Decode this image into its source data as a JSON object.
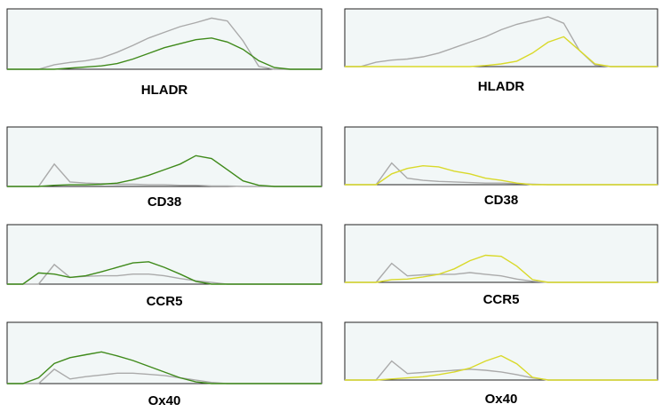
{
  "chart_data": [
    {
      "type": "line",
      "title": "HLADR",
      "x": [
        0,
        5,
        10,
        15,
        20,
        25,
        30,
        35,
        40,
        45,
        50,
        55,
        60,
        65,
        70,
        75,
        80,
        85,
        90,
        95,
        100
      ],
      "xlim": [
        0,
        100
      ],
      "ylim": [
        0,
        100
      ],
      "series": [
        {
          "color": "#aaaaaa",
          "values": [
            0,
            0,
            0,
            8,
            12,
            15,
            20,
            30,
            42,
            55,
            65,
            75,
            82,
            90,
            85,
            50,
            5,
            0,
            0,
            0,
            0
          ]
        },
        {
          "color": "#3f8a1a",
          "values": [
            0,
            0,
            0,
            0,
            2,
            4,
            6,
            10,
            18,
            28,
            38,
            45,
            52,
            55,
            48,
            35,
            15,
            3,
            0,
            0,
            0
          ]
        }
      ]
    },
    {
      "type": "line",
      "title": "HLADR",
      "x": [
        0,
        5,
        10,
        15,
        20,
        25,
        30,
        35,
        40,
        45,
        50,
        55,
        60,
        65,
        70,
        75,
        80,
        85,
        90,
        95,
        100
      ],
      "xlim": [
        0,
        100
      ],
      "ylim": [
        0,
        100
      ],
      "series": [
        {
          "color": "#aaaaaa",
          "values": [
            0,
            0,
            8,
            12,
            14,
            18,
            25,
            35,
            45,
            55,
            68,
            78,
            85,
            92,
            80,
            30,
            3,
            0,
            0,
            0,
            0
          ]
        },
        {
          "color": "#d9d92a",
          "values": [
            0,
            0,
            0,
            0,
            0,
            0,
            0,
            0,
            0,
            2,
            5,
            10,
            25,
            45,
            55,
            30,
            5,
            0,
            0,
            0,
            0
          ]
        }
      ]
    },
    {
      "type": "line",
      "title": "CD38",
      "x": [
        0,
        5,
        10,
        15,
        20,
        25,
        30,
        35,
        40,
        45,
        50,
        55,
        60,
        65,
        70,
        75,
        80,
        85,
        90,
        95,
        100
      ],
      "xlim": [
        0,
        100
      ],
      "ylim": [
        0,
        100
      ],
      "series": [
        {
          "color": "#aaaaaa",
          "values": [
            0,
            0,
            0,
            40,
            8,
            6,
            5,
            4,
            4,
            3,
            3,
            2,
            2,
            1,
            1,
            0,
            0,
            0,
            0,
            0,
            0
          ]
        },
        {
          "color": "#3f8a1a",
          "values": [
            0,
            0,
            0,
            2,
            3,
            3,
            4,
            6,
            12,
            20,
            30,
            40,
            55,
            50,
            30,
            10,
            2,
            0,
            0,
            0,
            0
          ]
        }
      ]
    },
    {
      "type": "line",
      "title": "CD38",
      "x": [
        0,
        5,
        10,
        15,
        20,
        25,
        30,
        35,
        40,
        45,
        50,
        55,
        60,
        65,
        70,
        75,
        80,
        85,
        90,
        95,
        100
      ],
      "xlim": [
        0,
        100
      ],
      "ylim": [
        0,
        100
      ],
      "series": [
        {
          "color": "#aaaaaa",
          "values": [
            0,
            0,
            0,
            40,
            12,
            8,
            6,
            5,
            4,
            3,
            3,
            2,
            1,
            0,
            0,
            0,
            0,
            0,
            0,
            0,
            0
          ]
        },
        {
          "color": "#d9d92a",
          "values": [
            0,
            0,
            0,
            20,
            30,
            35,
            33,
            25,
            20,
            12,
            8,
            3,
            0,
            0,
            0,
            0,
            0,
            0,
            0,
            0,
            0
          ]
        }
      ]
    },
    {
      "type": "line",
      "title": "CCR5",
      "x": [
        0,
        5,
        10,
        15,
        20,
        25,
        30,
        35,
        40,
        45,
        50,
        55,
        60,
        65,
        70,
        75,
        80,
        85,
        90,
        95,
        100
      ],
      "xlim": [
        0,
        100
      ],
      "ylim": [
        0,
        100
      ],
      "series": [
        {
          "color": "#aaaaaa",
          "values": [
            0,
            0,
            0,
            35,
            12,
            14,
            15,
            15,
            18,
            18,
            15,
            10,
            6,
            3,
            0,
            0,
            0,
            0,
            0,
            0,
            0
          ]
        },
        {
          "color": "#3f8a1a",
          "values": [
            0,
            0,
            20,
            18,
            12,
            15,
            22,
            30,
            38,
            40,
            30,
            18,
            5,
            0,
            0,
            0,
            0,
            0,
            0,
            0,
            0
          ]
        }
      ]
    },
    {
      "type": "line",
      "title": "CCR5",
      "x": [
        0,
        5,
        10,
        15,
        20,
        25,
        30,
        35,
        40,
        45,
        50,
        55,
        60,
        65,
        70,
        75,
        80,
        85,
        90,
        95,
        100
      ],
      "xlim": [
        0,
        100
      ],
      "ylim": [
        0,
        100
      ],
      "series": [
        {
          "color": "#aaaaaa",
          "values": [
            0,
            0,
            0,
            35,
            12,
            14,
            15,
            15,
            18,
            15,
            12,
            6,
            2,
            0,
            0,
            0,
            0,
            0,
            0,
            0,
            0
          ]
        },
        {
          "color": "#d9d92a",
          "values": [
            0,
            0,
            0,
            5,
            6,
            10,
            15,
            25,
            40,
            50,
            48,
            30,
            5,
            0,
            0,
            0,
            0,
            0,
            0,
            0,
            0
          ]
        }
      ]
    },
    {
      "type": "line",
      "title": "Ox40",
      "x": [
        0,
        5,
        10,
        15,
        20,
        25,
        30,
        35,
        40,
        45,
        50,
        55,
        60,
        65,
        70,
        75,
        80,
        85,
        90,
        95,
        100
      ],
      "xlim": [
        0,
        100
      ],
      "ylim": [
        0,
        100
      ],
      "series": [
        {
          "color": "#aaaaaa",
          "values": [
            0,
            0,
            0,
            25,
            8,
            12,
            15,
            18,
            18,
            16,
            14,
            10,
            6,
            2,
            0,
            0,
            0,
            0,
            0,
            0,
            0
          ]
        },
        {
          "color": "#3f8a1a",
          "values": [
            0,
            0,
            10,
            35,
            45,
            50,
            55,
            48,
            40,
            30,
            20,
            10,
            3,
            0,
            0,
            0,
            0,
            0,
            0,
            0,
            0
          ]
        }
      ]
    },
    {
      "type": "line",
      "title": "Ox40",
      "x": [
        0,
        5,
        10,
        15,
        20,
        25,
        30,
        35,
        40,
        45,
        50,
        55,
        60,
        65,
        70,
        75,
        80,
        85,
        90,
        95,
        100
      ],
      "xlim": [
        0,
        100
      ],
      "ylim": [
        0,
        100
      ],
      "series": [
        {
          "color": "#aaaaaa",
          "values": [
            0,
            0,
            0,
            35,
            12,
            14,
            16,
            18,
            20,
            18,
            15,
            10,
            4,
            0,
            0,
            0,
            0,
            0,
            0,
            0,
            0
          ]
        },
        {
          "color": "#d9d92a",
          "values": [
            0,
            0,
            0,
            2,
            4,
            6,
            10,
            15,
            22,
            35,
            45,
            30,
            5,
            0,
            0,
            0,
            0,
            0,
            0,
            0,
            0
          ]
        }
      ]
    }
  ]
}
